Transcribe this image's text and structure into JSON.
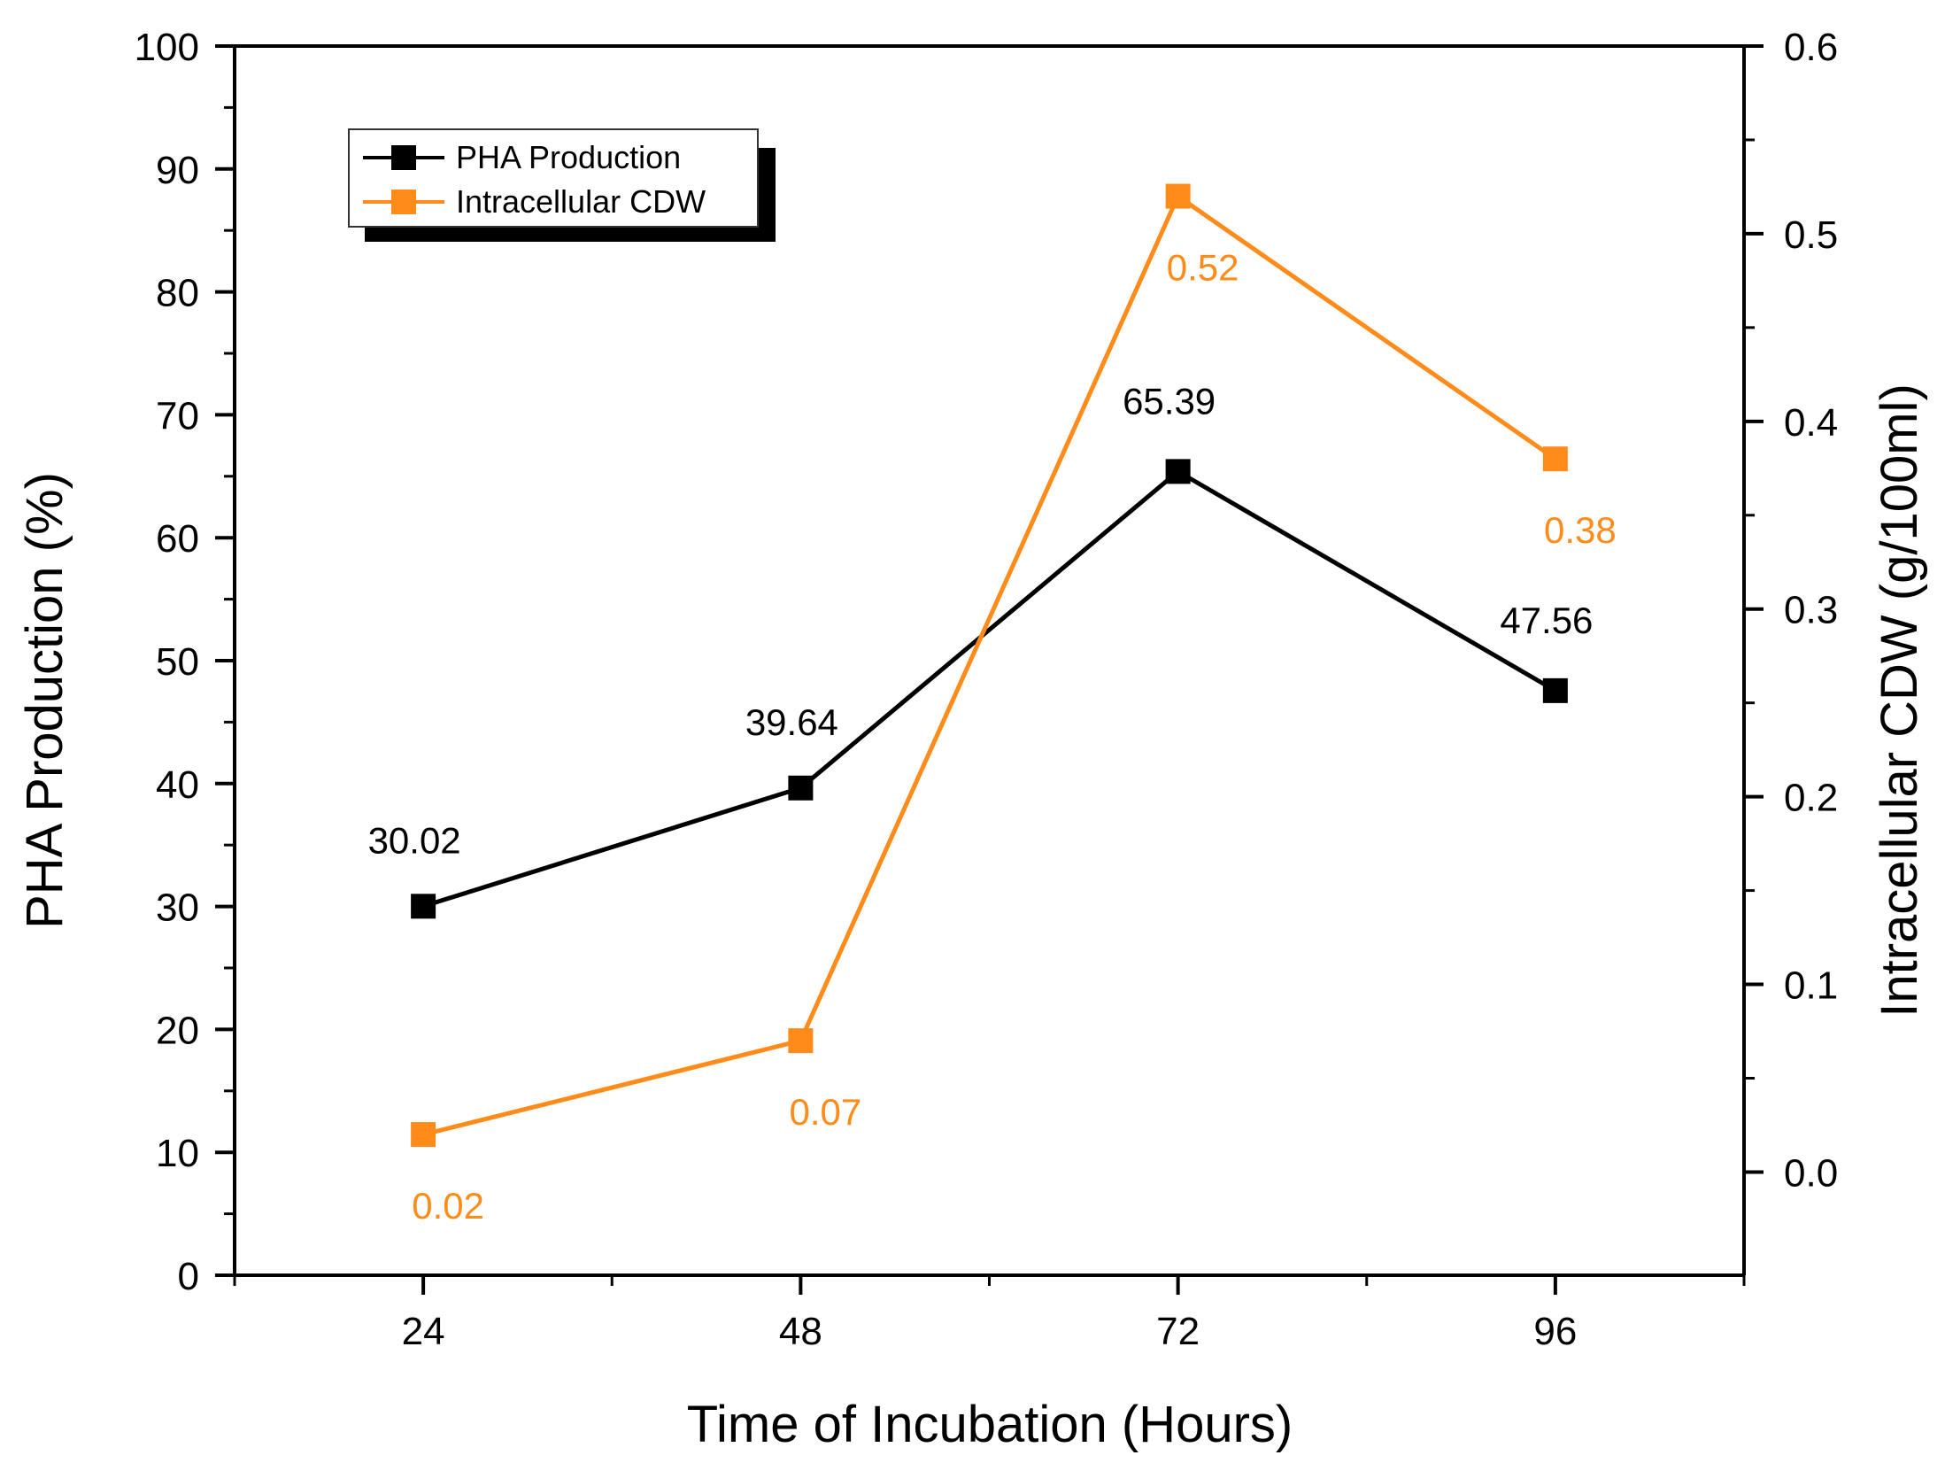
{
  "chart_data": {
    "type": "line",
    "title": "",
    "xlabel": "Time of Incubation (Hours)",
    "ylabel": "PHA Production (%)",
    "y2label": "Intracellular CDW (g/100ml)",
    "x": [
      24,
      48,
      72,
      96
    ],
    "x_tick_labels": [
      "24",
      "48",
      "72",
      "96"
    ],
    "xlim": [
      12,
      108
    ],
    "ylim": [
      0,
      100
    ],
    "y_ticks": [
      0,
      10,
      20,
      30,
      40,
      50,
      60,
      70,
      80,
      90,
      100
    ],
    "y_tick_labels": [
      "0",
      "10",
      "20",
      "30",
      "40",
      "50",
      "60",
      "70",
      "80",
      "90",
      "100"
    ],
    "y2lim": [
      -0.055,
      0.6
    ],
    "y2_ticks": [
      0.0,
      0.1,
      0.2,
      0.3,
      0.4,
      0.5,
      0.6
    ],
    "y2_tick_labels": [
      "0.0",
      "0.1",
      "0.2",
      "0.3",
      "0.4",
      "0.5",
      "0.6"
    ],
    "grid": false,
    "legend_position": "top-left",
    "series": [
      {
        "name": "PHA Production",
        "axis": "left",
        "color": "#000000",
        "values": [
          30.02,
          39.64,
          65.39,
          47.56
        ],
        "labels": [
          "30.02",
          "39.64",
          "65.39",
          "47.56"
        ]
      },
      {
        "name": "Intracellular CDW",
        "axis": "right",
        "color": "#ff8c1a",
        "values": [
          0.02,
          0.07,
          0.52,
          0.38
        ],
        "labels": [
          "0.02",
          "0.07",
          "0.52",
          "0.38"
        ]
      }
    ]
  }
}
